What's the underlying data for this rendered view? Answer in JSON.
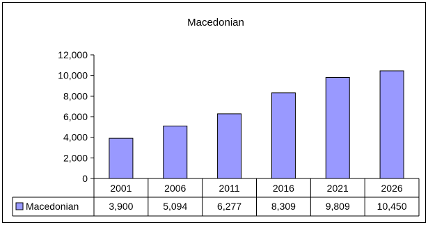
{
  "chart_data": {
    "type": "bar",
    "title": "Macedonian",
    "categories": [
      "2001",
      "2006",
      "2011",
      "2016",
      "2021",
      "2026"
    ],
    "series": [
      {
        "name": "Macedonian",
        "values": [
          3900,
          5094,
          6277,
          8309,
          9809,
          10450
        ],
        "value_labels": [
          "3,900",
          "5,094",
          "6,277",
          "8,309",
          "9,809",
          "10,450"
        ]
      }
    ],
    "ylim": [
      0,
      12000
    ],
    "yticks": [
      0,
      2000,
      4000,
      6000,
      8000,
      10000,
      12000
    ],
    "ytick_labels": [
      "0",
      "2,000",
      "4,000",
      "6,000",
      "8,000",
      "10,000",
      "12,000"
    ],
    "grid": false,
    "legend": "data-table",
    "colors": {
      "bar_fill": "#9999ff",
      "bar_stroke": "#000000"
    }
  }
}
